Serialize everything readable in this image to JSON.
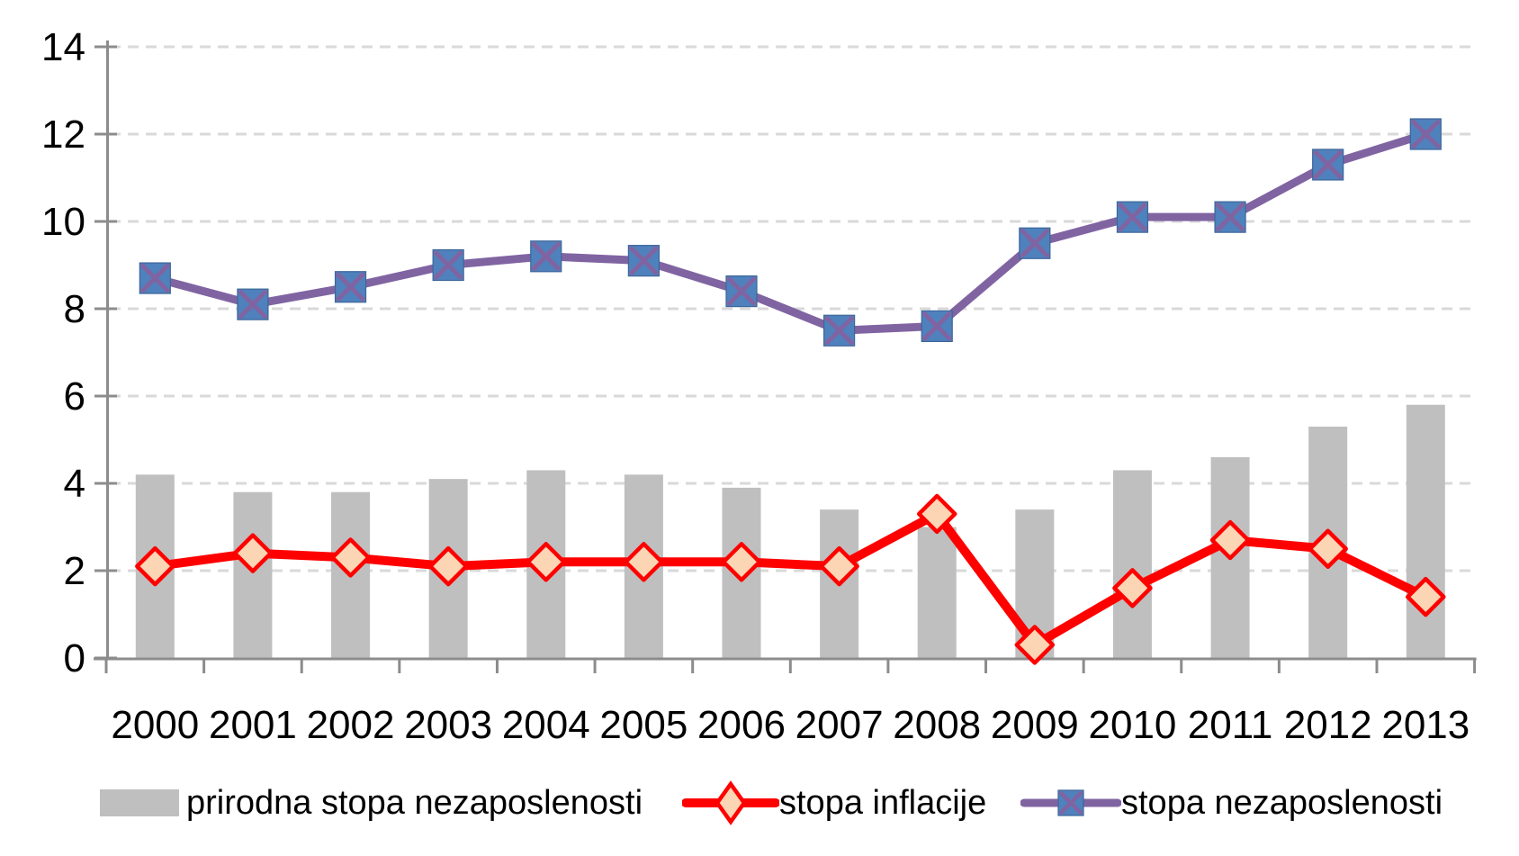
{
  "chart_data": {
    "type": "combo",
    "title": "",
    "xlabel": "",
    "ylabel": "",
    "categories": [
      "2000",
      "2001",
      "2002",
      "2003",
      "2004",
      "2005",
      "2006",
      "2007",
      "2008",
      "2009",
      "2010",
      "2011",
      "2012",
      "2013"
    ],
    "series": [
      {
        "name": "prirodna stopa nezaposlenosti",
        "type": "bar",
        "color": "#BFBFBF",
        "values": [
          4.2,
          3.8,
          3.8,
          4.1,
          4.3,
          4.2,
          3.9,
          3.4,
          3.0,
          3.4,
          4.3,
          4.6,
          5.3,
          5.8
        ]
      },
      {
        "name": "stopa inflacije",
        "type": "line",
        "marker": "diamond",
        "color": "#FF0000",
        "marker_fill": "#FCD5B4",
        "values": [
          2.1,
          2.4,
          2.3,
          2.1,
          2.2,
          2.2,
          2.2,
          2.1,
          3.3,
          0.3,
          1.6,
          2.7,
          2.5,
          1.4
        ]
      },
      {
        "name": "stopa nezaposlenosti",
        "type": "line",
        "marker": "square-x",
        "color": "#8064A2",
        "marker_fill": "#4F81BD",
        "values": [
          8.7,
          8.1,
          8.5,
          9.0,
          9.2,
          9.1,
          8.4,
          7.5,
          7.6,
          9.5,
          10.1,
          10.1,
          11.3,
          12.0
        ]
      }
    ],
    "ylim": [
      0,
      14
    ],
    "ytick_step": 2,
    "y_tick_labels": [
      "0",
      "2",
      "4",
      "6",
      "8",
      "10",
      "12",
      "14"
    ],
    "grid": "dashed-horizontal",
    "legend_position": "bottom",
    "style": {
      "grid_color": "#D9D9D9",
      "axis_color": "#8C8C8C",
      "text_color": "#000000"
    }
  }
}
